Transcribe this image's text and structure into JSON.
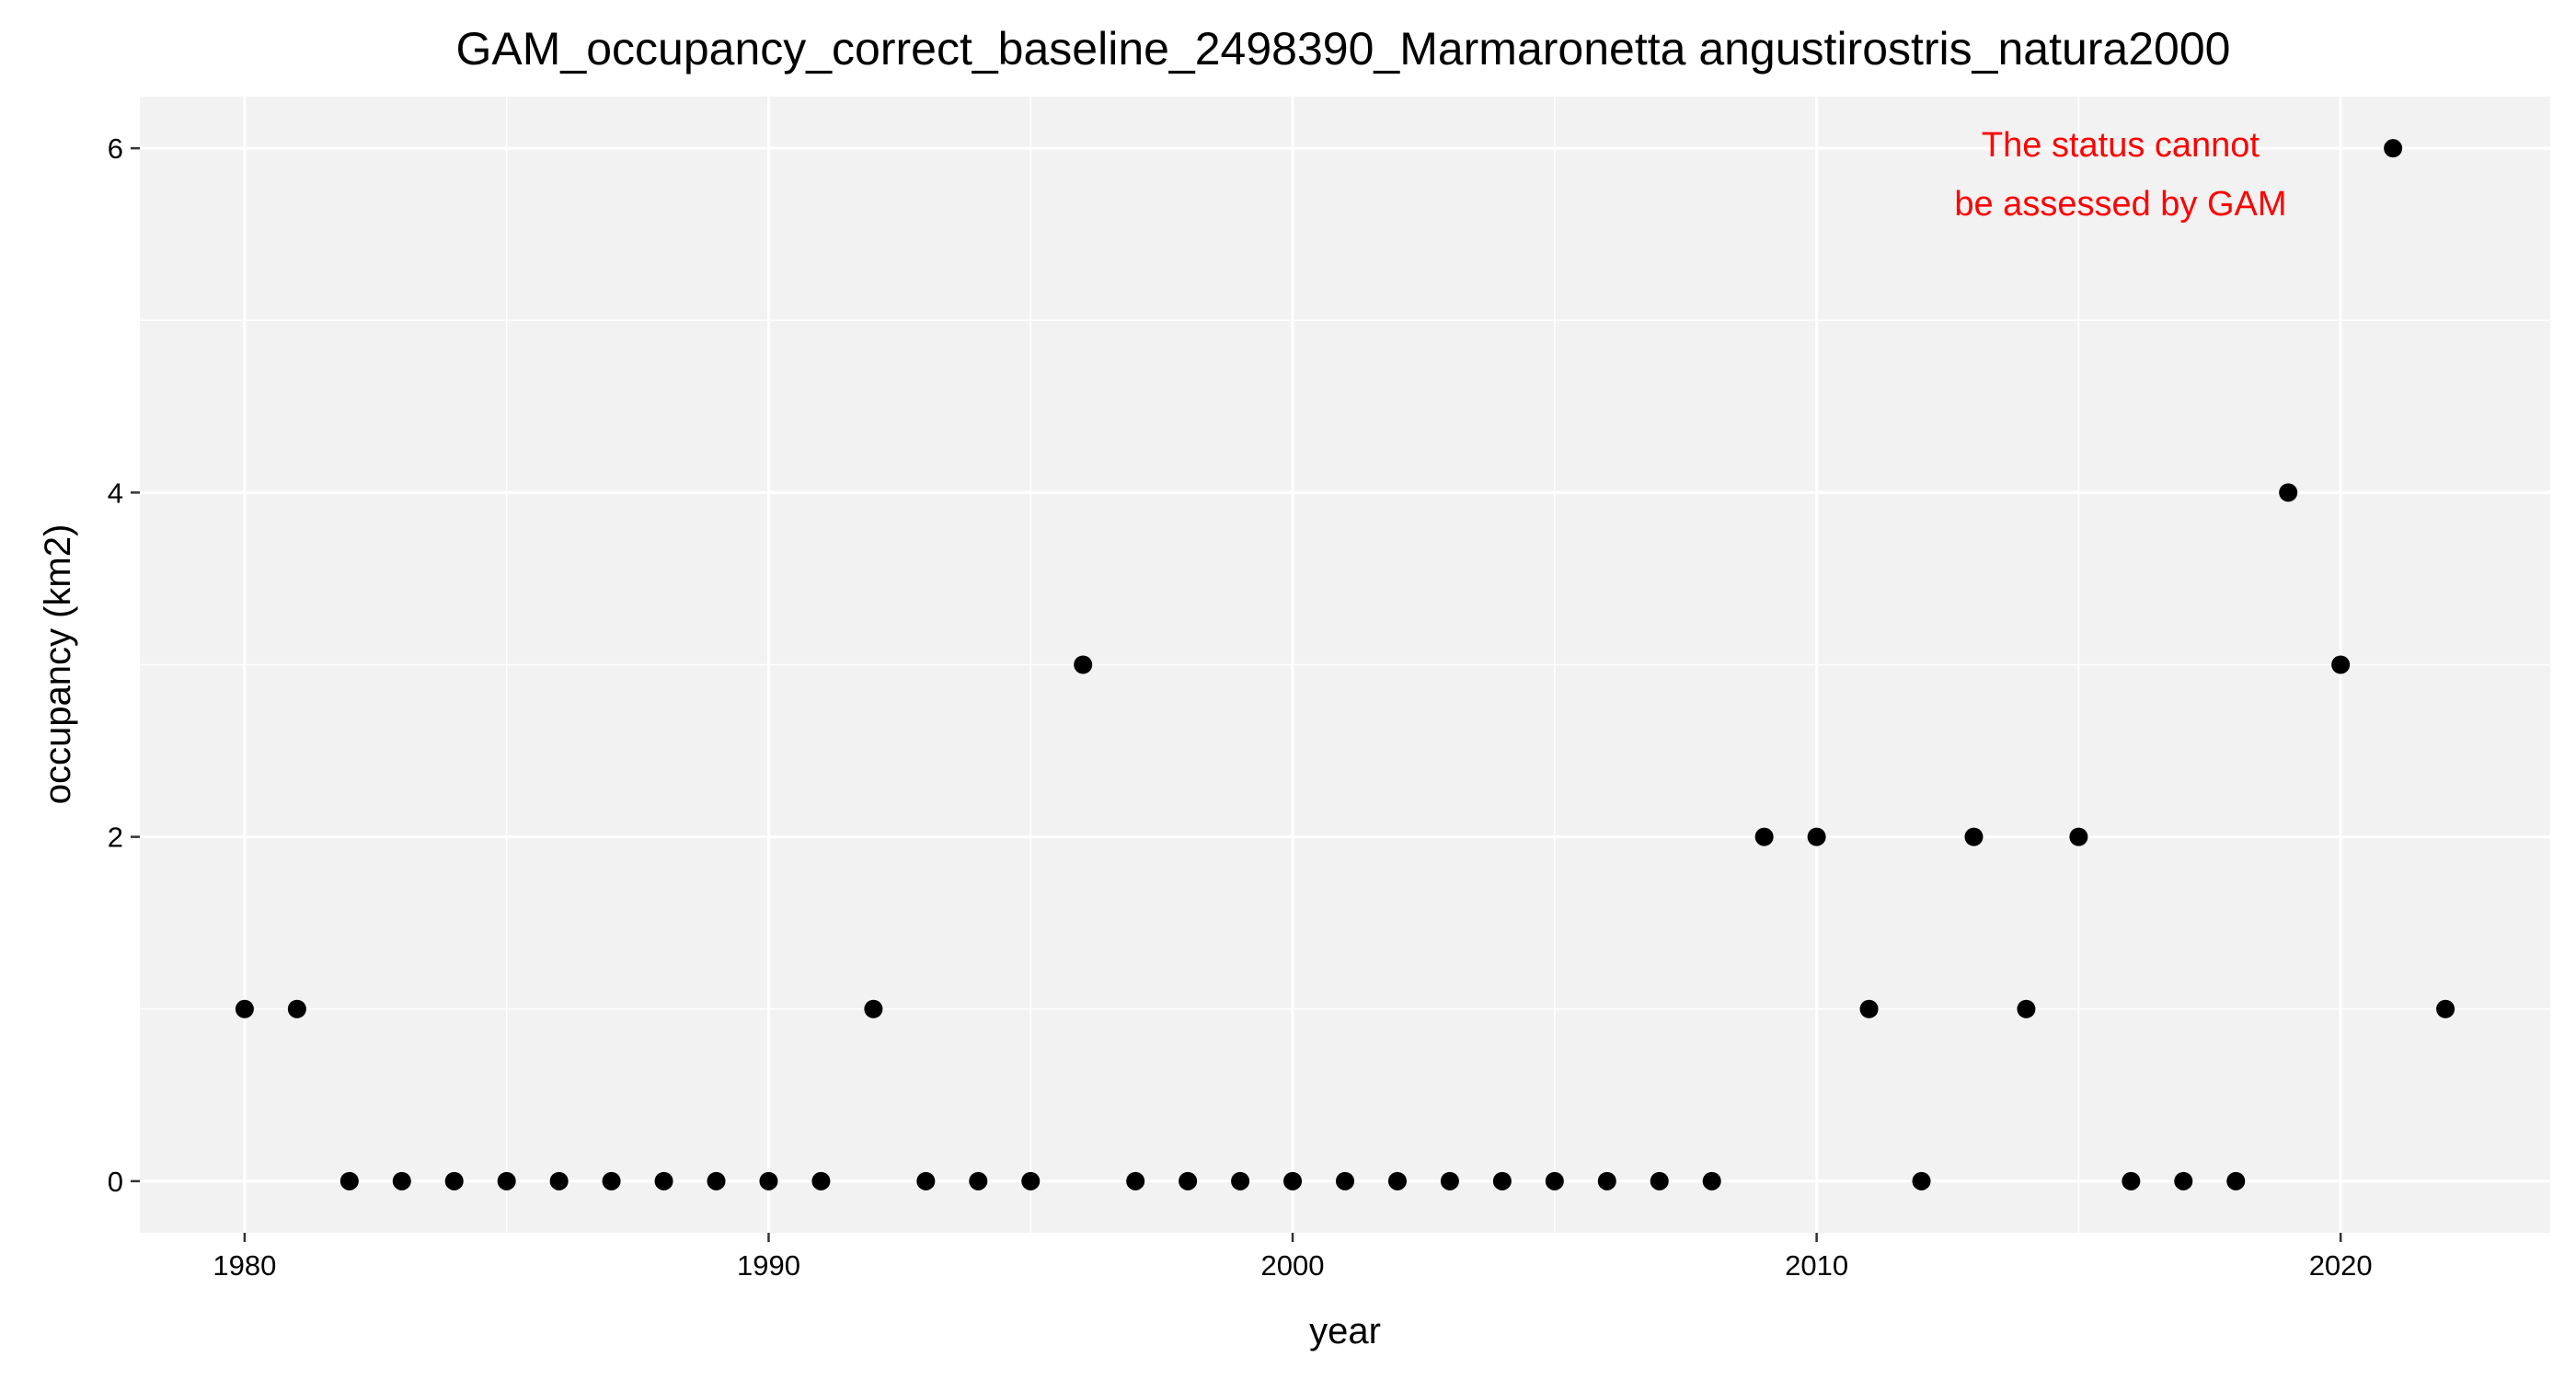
{
  "chart_data": {
    "type": "scatter",
    "title": "GAM_occupancy_correct_baseline_2498390_Marmaronetta angustirostris_natura2000",
    "xlabel": "year",
    "ylabel": "occupancy (km2)",
    "xlim": [
      1978,
      2024
    ],
    "ylim": [
      -0.3,
      6.3
    ],
    "x_ticks": [
      1980,
      1990,
      2000,
      2010,
      2020
    ],
    "y_ticks": [
      0,
      2,
      4,
      6
    ],
    "grid": true,
    "panel_color": "#f2f2f2",
    "grid_color": "#ffffff",
    "point_color": "#000000",
    "annotation_color": "#ff0000",
    "annotation": {
      "lines": [
        "The status cannot",
        "be assessed by GAM"
      ],
      "x": 2015.8,
      "y": 5.85
    },
    "series": [
      {
        "x": [
          1980,
          1981,
          1982,
          1983,
          1984,
          1985,
          1986,
          1987,
          1988,
          1989,
          1990,
          1991,
          1992,
          1993,
          1994,
          1995,
          1996,
          1997,
          1998,
          1999,
          2000,
          2001,
          2002,
          2003,
          2004,
          2005,
          2006,
          2007,
          2008,
          2009,
          2010,
          2011,
          2012,
          2013,
          2014,
          2015,
          2016,
          2017,
          2018,
          2019,
          2020,
          2021,
          2022
        ],
        "y": [
          1,
          1,
          0,
          0,
          0,
          0,
          0,
          0,
          0,
          0,
          0,
          0,
          1,
          0,
          0,
          0,
          3,
          0,
          0,
          0,
          0,
          0,
          0,
          0,
          0,
          0,
          0,
          0,
          0,
          2,
          2,
          1,
          0,
          2,
          1,
          2,
          0,
          0,
          0,
          4,
          3,
          6,
          1
        ]
      }
    ]
  }
}
